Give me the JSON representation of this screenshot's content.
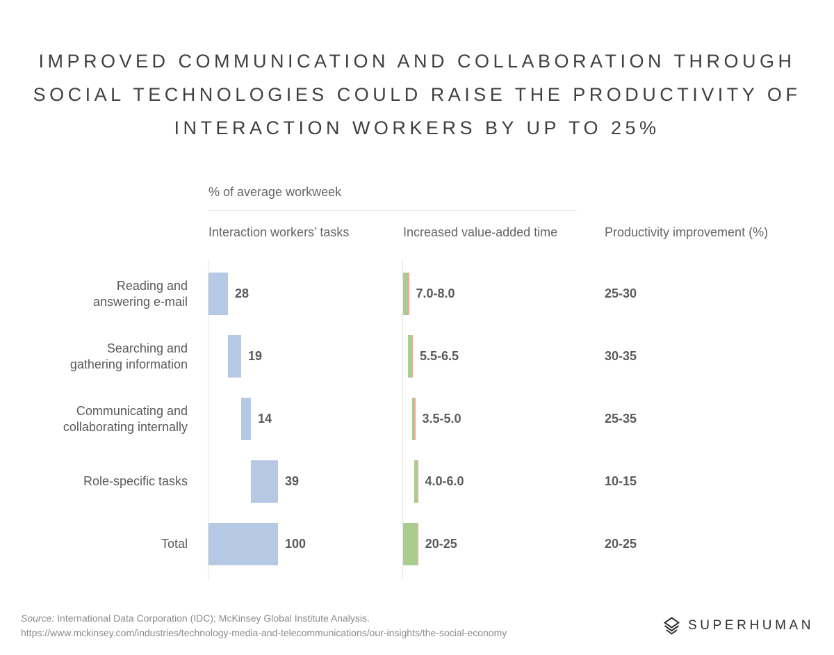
{
  "title_lines": [
    "IMPROVED COMMUNICATION AND COLLABORATION THROUGH",
    "SOCIAL TECHNOLOGIES COULD RAISE THE PRODUCTIVITY OF",
    "INTERACTION WORKERS BY UP TO 25%"
  ],
  "subtitle": "% of average workweek",
  "column_headers": {
    "tasks": "Interaction workers’ tasks",
    "time": "Increased value-added time",
    "improvement": "Productivity improvement (%)"
  },
  "chart_data": {
    "type": "bar",
    "subtype": "waterfall-table",
    "categories": [
      [
        "Reading and",
        "answering e-mail"
      ],
      [
        "Searching and",
        "gathering information"
      ],
      [
        "Communicating and",
        "collaborating internally"
      ],
      [
        "Role-specific tasks"
      ],
      [
        "Total"
      ]
    ],
    "tasks": {
      "name": "Interaction workers’ tasks",
      "values": [
        28,
        19,
        14,
        39,
        100
      ],
      "labels": [
        "28",
        "19",
        "14",
        "39",
        "100"
      ],
      "color": "#b5c9e5"
    },
    "value_added_time": {
      "name": "Increased value-added time",
      "low": [
        7.0,
        5.5,
        3.5,
        4.0,
        20
      ],
      "high": [
        8.0,
        6.5,
        5.0,
        6.0,
        25
      ],
      "labels": [
        "7.0-8.0",
        "5.5-6.5",
        "3.5-5.0",
        "4.0-6.0",
        "20-25"
      ],
      "colors": {
        "low": "#a9cd8f",
        "range": "#efaa98"
      }
    },
    "productivity_improvement": {
      "name": "Productivity improvement (%)",
      "labels": [
        "25-30",
        "30-35",
        "25-35",
        "10-15",
        "20-25"
      ]
    }
  },
  "source": {
    "prefix": "Source:",
    "text": " International Data Corporation (IDC); McKinsey Global Institute Analysis.",
    "url": "https://www.mckinsey.com/industries/technology-media-and-telecommunications/our-insights/the-social-economy"
  },
  "brand": {
    "name": "SUPERHUMAN",
    "icon": "superhuman-logo-icon"
  }
}
